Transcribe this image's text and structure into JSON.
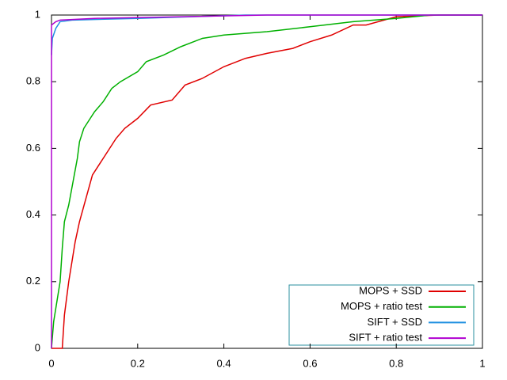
{
  "chart_data": {
    "type": "line",
    "xlim": [
      0,
      1
    ],
    "ylim": [
      0,
      1
    ],
    "xticks": [
      0,
      0.2,
      0.4,
      0.6,
      0.8,
      1
    ],
    "yticks": [
      0,
      0.2,
      0.4,
      0.6,
      0.8,
      1
    ],
    "legend": "lower right",
    "series": [
      {
        "name": "MOPS + SSD",
        "color": "#e00000",
        "x": [
          0,
          0.025,
          0.03,
          0.04,
          0.055,
          0.065,
          0.08,
          0.095,
          0.11,
          0.13,
          0.15,
          0.17,
          0.2,
          0.23,
          0.28,
          0.31,
          0.35,
          0.4,
          0.45,
          0.5,
          0.56,
          0.6,
          0.65,
          0.7,
          0.73,
          0.8,
          0.9,
          1
        ],
        "values": [
          0,
          0,
          0.1,
          0.2,
          0.32,
          0.38,
          0.45,
          0.52,
          0.55,
          0.59,
          0.63,
          0.66,
          0.69,
          0.73,
          0.745,
          0.79,
          0.81,
          0.845,
          0.87,
          0.885,
          0.9,
          0.92,
          0.94,
          0.97,
          0.97,
          0.995,
          1,
          1
        ]
      },
      {
        "name": "MOPS + ratio test",
        "color": "#00b000",
        "x": [
          0,
          0.005,
          0.01,
          0.02,
          0.025,
          0.03,
          0.04,
          0.05,
          0.06,
          0.065,
          0.075,
          0.09,
          0.1,
          0.12,
          0.14,
          0.16,
          0.2,
          0.22,
          0.26,
          0.3,
          0.35,
          0.4,
          0.5,
          0.6,
          0.7,
          0.8,
          0.88,
          1
        ],
        "values": [
          0,
          0.08,
          0.12,
          0.2,
          0.3,
          0.38,
          0.43,
          0.5,
          0.57,
          0.62,
          0.66,
          0.69,
          0.71,
          0.74,
          0.78,
          0.8,
          0.83,
          0.86,
          0.88,
          0.905,
          0.93,
          0.94,
          0.95,
          0.965,
          0.98,
          0.99,
          1,
          1
        ]
      },
      {
        "name": "SIFT + SSD",
        "color": "#1f8fe0",
        "x": [
          0,
          0.002,
          0.01,
          0.02,
          0.05,
          0.2,
          0.45,
          1
        ],
        "values": [
          0.88,
          0.93,
          0.96,
          0.98,
          0.985,
          0.99,
          1,
          1
        ]
      },
      {
        "name": "SIFT + ratio test",
        "color": "#b000d0",
        "x": [
          0,
          0,
          0.01,
          0.02,
          0.1,
          0.5,
          1
        ],
        "values": [
          0,
          0.97,
          0.98,
          0.985,
          0.99,
          1,
          1
        ]
      }
    ]
  }
}
